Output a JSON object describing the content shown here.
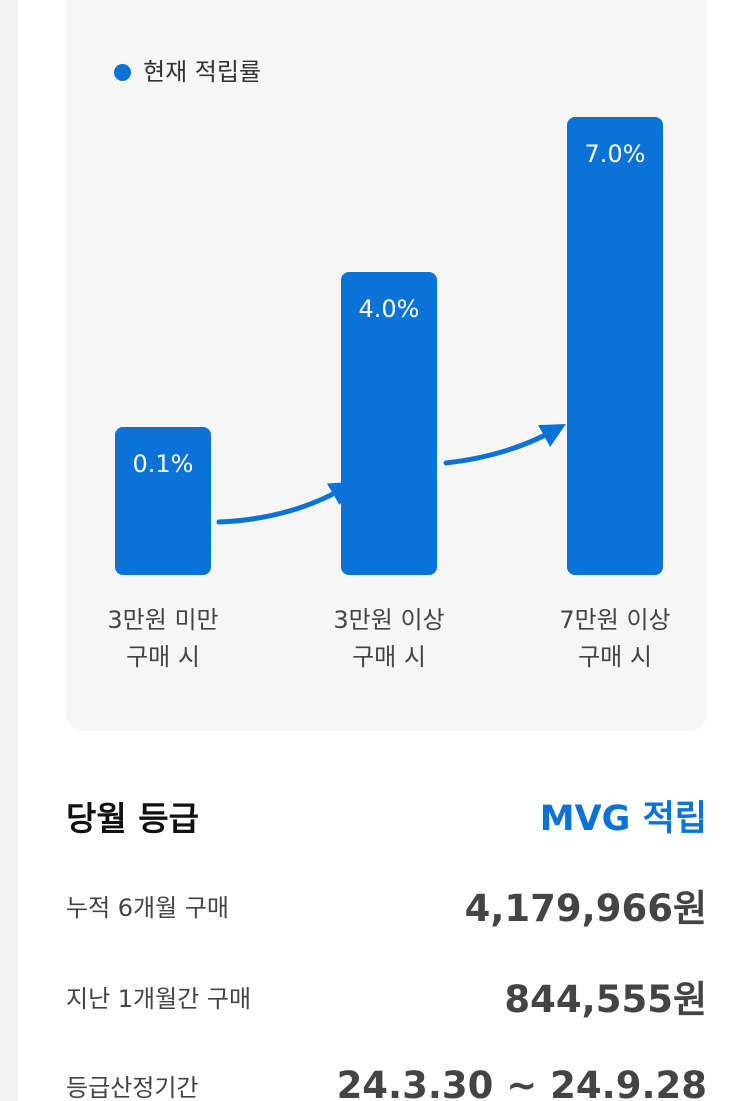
{
  "chart_data": {
    "type": "bar",
    "title": "",
    "legend": "현재 적립률",
    "categories": [
      [
        "3만원 미만",
        "구매 시"
      ],
      [
        "3만원 이상",
        "구매 시"
      ],
      [
        "7만원 이상",
        "구매 시"
      ]
    ],
    "series": [
      {
        "name": "현재 적립률",
        "values": [
          0.1,
          4.0,
          7.0
        ]
      }
    ],
    "value_labels": [
      "0.1%",
      "4.0%",
      "7.0%"
    ],
    "bar_color": "#0b73d8",
    "unit": "%",
    "grid": false,
    "legend_position": "top-left",
    "annotations": [
      "arrow-between-bar-1-and-2",
      "arrow-between-bar-2-and-3"
    ]
  },
  "summary": {
    "grade_label": "당월 등급",
    "grade_value": "MVG 적립",
    "rows": [
      {
        "label": "누적 6개월 구매",
        "value": "4,179,966원"
      },
      {
        "label": "지난 1개월간 구매",
        "value": "844,555원"
      },
      {
        "label": "등급산정기간",
        "value": "24.3.30 ~ 24.9.28"
      }
    ]
  },
  "colors": {
    "accent": "#0b73d8",
    "card_bg": "#f6f6f7",
    "text_primary": "#111111",
    "text_secondary": "#444444"
  }
}
